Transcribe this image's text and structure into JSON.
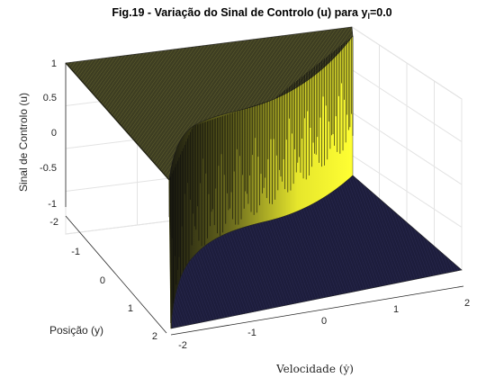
{
  "chart_data": {
    "type": "surface",
    "title": "Fig.19 - Variação do Sinal de Controlo (u) para y",
    "title_subscript": "l",
    "title_suffix": "=0.0",
    "xlabel": "Velocidade (ẏ)",
    "ylabel": "Posição (y)",
    "zlabel": "Sinal de Controlo (u)",
    "xlim": [
      -2,
      2
    ],
    "ylim": [
      -2,
      2
    ],
    "zlim": [
      -1,
      1
    ],
    "xticks": [
      -2,
      -1,
      0,
      1,
      2
    ],
    "yticks": [
      -2,
      -1,
      0,
      1,
      2
    ],
    "zticks": [
      -1,
      -0.5,
      0,
      0.5,
      1
    ],
    "xtick_labels": [
      "-2",
      "-1",
      "0",
      "1",
      "2"
    ],
    "ytick_labels": [
      "-2",
      "-1",
      "0",
      "1",
      "2"
    ],
    "ztick_labels": [
      "-1",
      "-0.5",
      "0",
      "0.5",
      "1"
    ],
    "z_upper": 1,
    "z_lower": -1,
    "switching_curve": {
      "description_x": "Velocidade",
      "y_at_x": [
        {
          "x": -2.0,
          "y": 2.0
        },
        {
          "x": -1.5,
          "y": 1.2
        },
        {
          "x": -1.0,
          "y": 0.55
        },
        {
          "x": -0.5,
          "y": 0.15
        },
        {
          "x": 0.0,
          "y": 0.0
        },
        {
          "x": 0.5,
          "y": -0.15
        },
        {
          "x": 1.0,
          "y": -0.55
        },
        {
          "x": 1.5,
          "y": -1.2
        },
        {
          "x": 2.0,
          "y": -2.0
        }
      ]
    },
    "colors": {
      "upper_surface": "#3b3b1e",
      "lower_surface": "#1c1c3a",
      "wall": "#ffff33",
      "mesh_dark": "#101010",
      "background": "#ffffff"
    },
    "grid": true
  }
}
